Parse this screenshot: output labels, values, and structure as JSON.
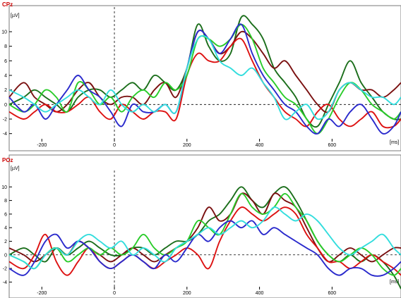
{
  "colors": {
    "background": "#ffffff",
    "frame": "#7a7a7a",
    "channel_title": "#cc0000",
    "zero_line": "#000000"
  },
  "chart_data": [
    {
      "type": "line",
      "title": "CPz",
      "ylabel": "[µV]",
      "xlabel": "[ms]",
      "xlim": [
        -290,
        790
      ],
      "ylim": [
        -5,
        13
      ],
      "x_ticks": [
        -200,
        0,
        200,
        400,
        600
      ],
      "y_ticks": [
        -4,
        -2,
        0,
        2,
        4,
        6,
        8,
        10
      ],
      "grid": false,
      "zero_lines": true,
      "series": [
        {
          "color": "#1b6e1b",
          "x": [
            -290,
            -250,
            -220,
            -190,
            -160,
            -130,
            -100,
            -70,
            -40,
            -10,
            20,
            50,
            80,
            110,
            140,
            170,
            200,
            230,
            260,
            290,
            320,
            350,
            380,
            410,
            440,
            470,
            500,
            530,
            560,
            590,
            620,
            650,
            680,
            710,
            740,
            770,
            790
          ],
          "y": [
            0,
            1,
            2,
            1,
            0,
            -1,
            1,
            2,
            2,
            1,
            2,
            3,
            2,
            4,
            3,
            2,
            5,
            11,
            8,
            6,
            7,
            12,
            11,
            9,
            5,
            3,
            1,
            -2,
            -3,
            0,
            3,
            6,
            3,
            1,
            -1,
            -2,
            -2
          ]
        },
        {
          "color": "#7a1010",
          "x": [
            -290,
            -250,
            -220,
            -190,
            -160,
            -130,
            -100,
            -70,
            -40,
            -10,
            20,
            50,
            80,
            110,
            140,
            170,
            200,
            230,
            260,
            290,
            320,
            350,
            380,
            410,
            440,
            470,
            500,
            530,
            560,
            590,
            620,
            650,
            680,
            710,
            740,
            770,
            790
          ],
          "y": [
            1,
            3,
            1,
            0,
            -1,
            0,
            2,
            3,
            1,
            0,
            1,
            1,
            0,
            2,
            3,
            1,
            5,
            10,
            9,
            7,
            8,
            10,
            9,
            7,
            5,
            6,
            4,
            2,
            0,
            -1,
            2,
            3,
            2,
            2,
            1,
            2,
            3
          ]
        },
        {
          "color": "#dd1111",
          "x": [
            -290,
            -250,
            -220,
            -190,
            -160,
            -130,
            -100,
            -70,
            -40,
            -10,
            20,
            50,
            80,
            110,
            140,
            170,
            200,
            230,
            260,
            290,
            320,
            350,
            380,
            410,
            440,
            470,
            500,
            530,
            560,
            590,
            620,
            650,
            680,
            710,
            740,
            770,
            790
          ],
          "y": [
            -1,
            -2,
            -1,
            0,
            -1,
            -1,
            0,
            1,
            -1,
            -2,
            0,
            -1,
            -2,
            -1,
            -1,
            -2,
            4,
            7,
            6,
            6,
            8,
            9,
            6,
            3,
            1,
            -1,
            -2,
            -3,
            -1,
            0,
            -2,
            -3,
            -2,
            -1,
            -3,
            -3,
            -2
          ]
        },
        {
          "color": "#2acc2a",
          "x": [
            -290,
            -250,
            -220,
            -190,
            -160,
            -130,
            -100,
            -70,
            -40,
            -10,
            20,
            50,
            80,
            110,
            140,
            170,
            200,
            230,
            260,
            290,
            320,
            350,
            380,
            410,
            440,
            470,
            500,
            530,
            560,
            590,
            620,
            650,
            680,
            710,
            740,
            770,
            790
          ],
          "y": [
            0,
            -1,
            0,
            2,
            1,
            -1,
            3,
            2,
            0,
            1,
            -1,
            1,
            2,
            1,
            3,
            2,
            4,
            9,
            9,
            8,
            9,
            11,
            9,
            5,
            3,
            1,
            0,
            -2,
            -4,
            -2,
            1,
            3,
            2,
            0,
            -1,
            -2,
            -1
          ]
        },
        {
          "color": "#2a2acc",
          "x": [
            -290,
            -250,
            -220,
            -190,
            -160,
            -130,
            -100,
            -70,
            -40,
            -10,
            20,
            50,
            80,
            110,
            140,
            170,
            200,
            230,
            260,
            290,
            320,
            350,
            380,
            410,
            440,
            470,
            500,
            530,
            560,
            590,
            620,
            650,
            680,
            710,
            740,
            770,
            790
          ],
          "y": [
            1,
            -1,
            0,
            -2,
            0,
            2,
            4,
            2,
            1,
            -1,
            -3,
            0,
            -1,
            -1,
            0,
            -1,
            5,
            10,
            9,
            7,
            9,
            11,
            7,
            4,
            2,
            0,
            -1,
            -3,
            -4,
            -2,
            -3,
            -1,
            0,
            -2,
            -4,
            -3,
            -1
          ]
        },
        {
          "color": "#33dddd",
          "x": [
            -290,
            -250,
            -220,
            -190,
            -160,
            -130,
            -100,
            -70,
            -40,
            -10,
            20,
            50,
            80,
            110,
            140,
            170,
            200,
            230,
            260,
            290,
            320,
            350,
            380,
            410,
            440,
            470,
            500,
            530,
            560,
            590,
            620,
            650,
            680,
            710,
            740,
            770,
            790
          ],
          "y": [
            2,
            1,
            0,
            -1,
            0,
            1,
            2,
            1,
            0,
            2,
            0,
            -1,
            0,
            -1,
            0,
            -1,
            5,
            9,
            9,
            6,
            5,
            4,
            5,
            3,
            1,
            -2,
            -1,
            0,
            -2,
            -1,
            2,
            3,
            2,
            1,
            1,
            0,
            1
          ]
        }
      ]
    },
    {
      "type": "line",
      "title": "POz",
      "ylabel": "[µV]",
      "xlabel": "[ms]",
      "xlim": [
        -290,
        790
      ],
      "ylim": [
        -5,
        12
      ],
      "x_ticks": [
        -200,
        0,
        200,
        400,
        600
      ],
      "y_ticks": [
        -4,
        -2,
        0,
        2,
        4,
        6,
        8,
        10
      ],
      "grid": false,
      "zero_lines": true,
      "series": [
        {
          "color": "#1b6e1b",
          "x": [
            -290,
            -250,
            -220,
            -190,
            -160,
            -130,
            -100,
            -70,
            -40,
            -10,
            20,
            50,
            80,
            110,
            140,
            170,
            200,
            230,
            260,
            290,
            320,
            350,
            380,
            410,
            440,
            470,
            500,
            530,
            560,
            590,
            620,
            650,
            680,
            710,
            740,
            770,
            790
          ],
          "y": [
            0,
            1,
            0,
            -1,
            1,
            0,
            1,
            2,
            1,
            0,
            0,
            1,
            1,
            0,
            1,
            2,
            2,
            3,
            5,
            6,
            8,
            10,
            8,
            7,
            9,
            10,
            8,
            5,
            2,
            0,
            -1,
            0,
            -1,
            0,
            -1,
            -3,
            -5
          ]
        },
        {
          "color": "#7a1010",
          "x": [
            -290,
            -250,
            -220,
            -190,
            -160,
            -130,
            -100,
            -70,
            -40,
            -10,
            20,
            50,
            80,
            110,
            140,
            170,
            200,
            230,
            260,
            290,
            320,
            350,
            380,
            410,
            440,
            470,
            500,
            530,
            560,
            590,
            620,
            650,
            680,
            710,
            740,
            770,
            790
          ],
          "y": [
            1,
            0,
            -1,
            0,
            1,
            0,
            2,
            1,
            0,
            -1,
            0,
            1,
            0,
            -1,
            0,
            1,
            2,
            4,
            7,
            5,
            6,
            9,
            8,
            6,
            9,
            8,
            7,
            4,
            1,
            -1,
            0,
            1,
            0,
            -1,
            0,
            1,
            1
          ]
        },
        {
          "color": "#dd1111",
          "x": [
            -290,
            -250,
            -220,
            -190,
            -160,
            -130,
            -100,
            -70,
            -40,
            -10,
            20,
            50,
            80,
            110,
            140,
            170,
            200,
            230,
            260,
            290,
            320,
            350,
            380,
            410,
            440,
            470,
            500,
            530,
            560,
            590,
            620,
            650,
            680,
            710,
            740,
            770,
            790
          ],
          "y": [
            -1,
            -2,
            0,
            3,
            -1,
            -3,
            -1,
            1,
            -1,
            -2,
            -1,
            0,
            -1,
            -2,
            -1,
            0,
            1,
            0,
            -2,
            2,
            5,
            7,
            6,
            5,
            6,
            7,
            6,
            3,
            1,
            -1,
            -1,
            -2,
            -1,
            0,
            -1,
            -2,
            -3
          ]
        },
        {
          "color": "#2acc2a",
          "x": [
            -290,
            -250,
            -220,
            -190,
            -160,
            -130,
            -100,
            -70,
            -40,
            -10,
            20,
            50,
            80,
            110,
            140,
            170,
            200,
            230,
            260,
            290,
            320,
            350,
            380,
            410,
            440,
            470,
            500,
            530,
            560,
            590,
            620,
            650,
            680,
            710,
            740,
            770,
            790
          ],
          "y": [
            0,
            -1,
            -2,
            0,
            1,
            -1,
            0,
            1,
            0,
            1,
            0,
            1,
            3,
            1,
            0,
            1,
            2,
            5,
            4,
            3,
            6,
            9,
            7,
            6,
            7,
            9,
            7,
            5,
            2,
            0,
            -1,
            0,
            1,
            0,
            -2,
            -3,
            -2
          ]
        },
        {
          "color": "#2a2acc",
          "x": [
            -290,
            -250,
            -220,
            -190,
            -160,
            -130,
            -100,
            -70,
            -40,
            -10,
            20,
            50,
            80,
            110,
            140,
            170,
            200,
            230,
            260,
            290,
            320,
            350,
            380,
            410,
            440,
            470,
            500,
            530,
            560,
            590,
            620,
            650,
            680,
            710,
            740,
            770,
            790
          ],
          "y": [
            -2,
            -3,
            -1,
            2,
            3,
            1,
            2,
            1,
            -1,
            -2,
            -1,
            0,
            -1,
            -2,
            0,
            -1,
            1,
            3,
            2,
            4,
            5,
            4,
            5,
            3,
            4,
            3,
            2,
            1,
            0,
            -2,
            -3,
            -2,
            -2,
            -3,
            -3,
            -2,
            -1
          ]
        },
        {
          "color": "#33dddd",
          "x": [
            -290,
            -250,
            -220,
            -190,
            -160,
            -130,
            -100,
            -70,
            -40,
            -10,
            20,
            50,
            80,
            110,
            140,
            170,
            200,
            230,
            260,
            290,
            320,
            350,
            380,
            410,
            440,
            470,
            500,
            530,
            560,
            590,
            620,
            650,
            680,
            710,
            740,
            770,
            790
          ],
          "y": [
            0,
            -1,
            -2,
            0,
            1,
            0,
            2,
            3,
            2,
            1,
            2,
            0,
            1,
            0,
            -1,
            1,
            2,
            3,
            4,
            3,
            4,
            5,
            4,
            5,
            7,
            6,
            5,
            6,
            5,
            3,
            1,
            0,
            1,
            2,
            3,
            1,
            0
          ]
        }
      ]
    }
  ]
}
